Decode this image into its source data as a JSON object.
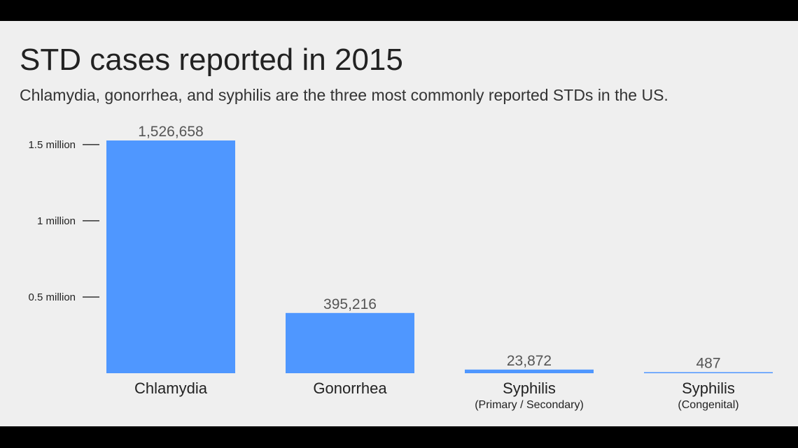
{
  "title": "STD cases reported in 2015",
  "subtitle": "Chlamydia, gonorrhea, and syphilis are the three most commonly reported STDs in the US.",
  "chart_data": {
    "type": "bar",
    "categories": [
      {
        "name": "Chlamydia",
        "sub": ""
      },
      {
        "name": "Gonorrhea",
        "sub": ""
      },
      {
        "name": "Syphilis",
        "sub": "(Primary / Secondary)"
      },
      {
        "name": "Syphilis",
        "sub": "(Congenital)"
      }
    ],
    "values": [
      1526658,
      395216,
      23872,
      487
    ],
    "value_labels": [
      "1,526,658",
      "395,216",
      "23,872",
      "487"
    ],
    "y_ticks": [
      {
        "value": 500000,
        "label": "0.5 million"
      },
      {
        "value": 1000000,
        "label": "1 million"
      },
      {
        "value": 1500000,
        "label": "1.5 million"
      }
    ],
    "ylim": [
      0,
      1526658
    ],
    "grid": false,
    "colors": {
      "bar": "#4f97ff",
      "background": "#efefef",
      "frame": "#000000"
    }
  }
}
